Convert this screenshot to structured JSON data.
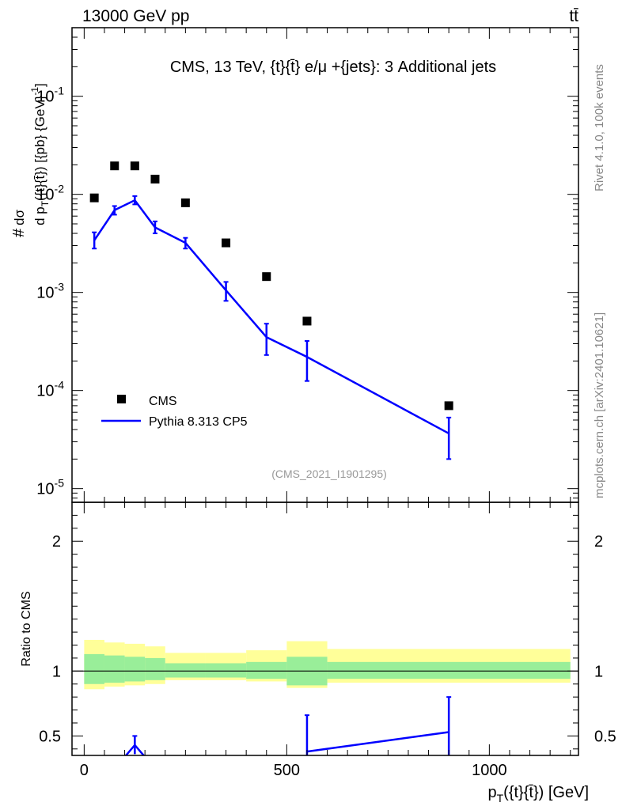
{
  "header": {
    "beam": "13000 GeV pp",
    "process": "tt̄"
  },
  "side_labels": {
    "rivet": "Rivet 4.1.0,  100k events",
    "mcplots": "mcplots.cern.ch [arXiv:2401.10621]"
  },
  "chart_data": [
    {
      "type": "scatter",
      "panel": "main",
      "title": "CMS, 13 TeV, {t}{t̄} e/μ +{jets}: 3 Additional jets",
      "analysis_id": "(CMS_2021_I1901295)",
      "ylabel": "d σ / d p_T({t}{t̄}) [{pb} {GeV}^-1]",
      "yscale": "log",
      "ylim": [
        7.25e-06,
        0.5
      ],
      "xlim": [
        -30,
        1220
      ],
      "ytick_labels": [
        "10^-5",
        "10^-4",
        "10^-3",
        "10^-2",
        "10^-1"
      ],
      "ytick_values": [
        1e-05,
        0.0001,
        0.001,
        0.01,
        0.1
      ],
      "legend": {
        "placement": "bottom-left",
        "entries": [
          "CMS",
          "Pythia 8.313 CP5"
        ]
      },
      "series": [
        {
          "name": "CMS",
          "marker": "square",
          "x": [
            25,
            75,
            125,
            175,
            250,
            350,
            450,
            550,
            900
          ],
          "y": [
            0.0092,
            0.0195,
            0.0195,
            0.0143,
            0.0082,
            0.0032,
            0.00145,
            0.00051,
            7e-05
          ]
        },
        {
          "name": "Pythia 8.313 CP5",
          "marker": "line",
          "color": "#0000ff",
          "x": [
            25,
            75,
            125,
            175,
            250,
            350,
            450,
            550,
            900
          ],
          "y": [
            0.0034,
            0.0069,
            0.0087,
            0.0046,
            0.0032,
            0.00105,
            0.00035,
            0.00022,
            3.65e-05
          ],
          "y_low": [
            0.0028,
            0.0062,
            0.0079,
            0.004,
            0.0028,
            0.00082,
            0.00023,
            0.000125,
            2e-05
          ],
          "y_high": [
            0.0041,
            0.0076,
            0.0096,
            0.0053,
            0.0036,
            0.00128,
            0.00048,
            0.00032,
            5.3e-05
          ]
        }
      ]
    },
    {
      "type": "line",
      "panel": "ratio",
      "xlabel": "p_T({t}{t̄}) [GeV]",
      "ylabel": "Ratio to CMS",
      "ylim": [
        0.35,
        2.3
      ],
      "xlim": [
        -30,
        1220
      ],
      "ytick_labels": [
        "0.5",
        "1",
        "2"
      ],
      "ytick_values": [
        0.5,
        1,
        2
      ],
      "xtick_labels": [
        "0",
        "500",
        "1000"
      ],
      "xtick_values": [
        0,
        500,
        1000
      ],
      "bands": {
        "edges": [
          0,
          50,
          100,
          150,
          200,
          300,
          400,
          500,
          600,
          1200
        ],
        "inner_low": [
          0.9,
          0.91,
          0.92,
          0.93,
          0.95,
          0.95,
          0.94,
          0.89,
          0.94
        ],
        "inner_high": [
          1.13,
          1.12,
          1.11,
          1.1,
          1.06,
          1.06,
          1.07,
          1.11,
          1.07
        ],
        "outer_low": [
          0.86,
          0.88,
          0.89,
          0.9,
          0.93,
          0.93,
          0.92,
          0.87,
          0.91
        ],
        "outer_high": [
          1.24,
          1.22,
          1.21,
          1.19,
          1.14,
          1.14,
          1.16,
          1.23,
          1.17
        ]
      },
      "series": [
        {
          "name": "Pythia 8.313 CP5 / CMS",
          "color": "#0000ff",
          "x": [
            95,
            125,
            155,
            550,
            900
          ],
          "y": [
            0.32,
            0.43,
            0.32,
            0.38,
            0.53
          ],
          "err_x": [
            125,
            550,
            900
          ],
          "err_low": [
            0.36,
            0.2,
            0.2
          ],
          "err_high": [
            0.5,
            0.66,
            0.8
          ]
        }
      ]
    }
  ]
}
